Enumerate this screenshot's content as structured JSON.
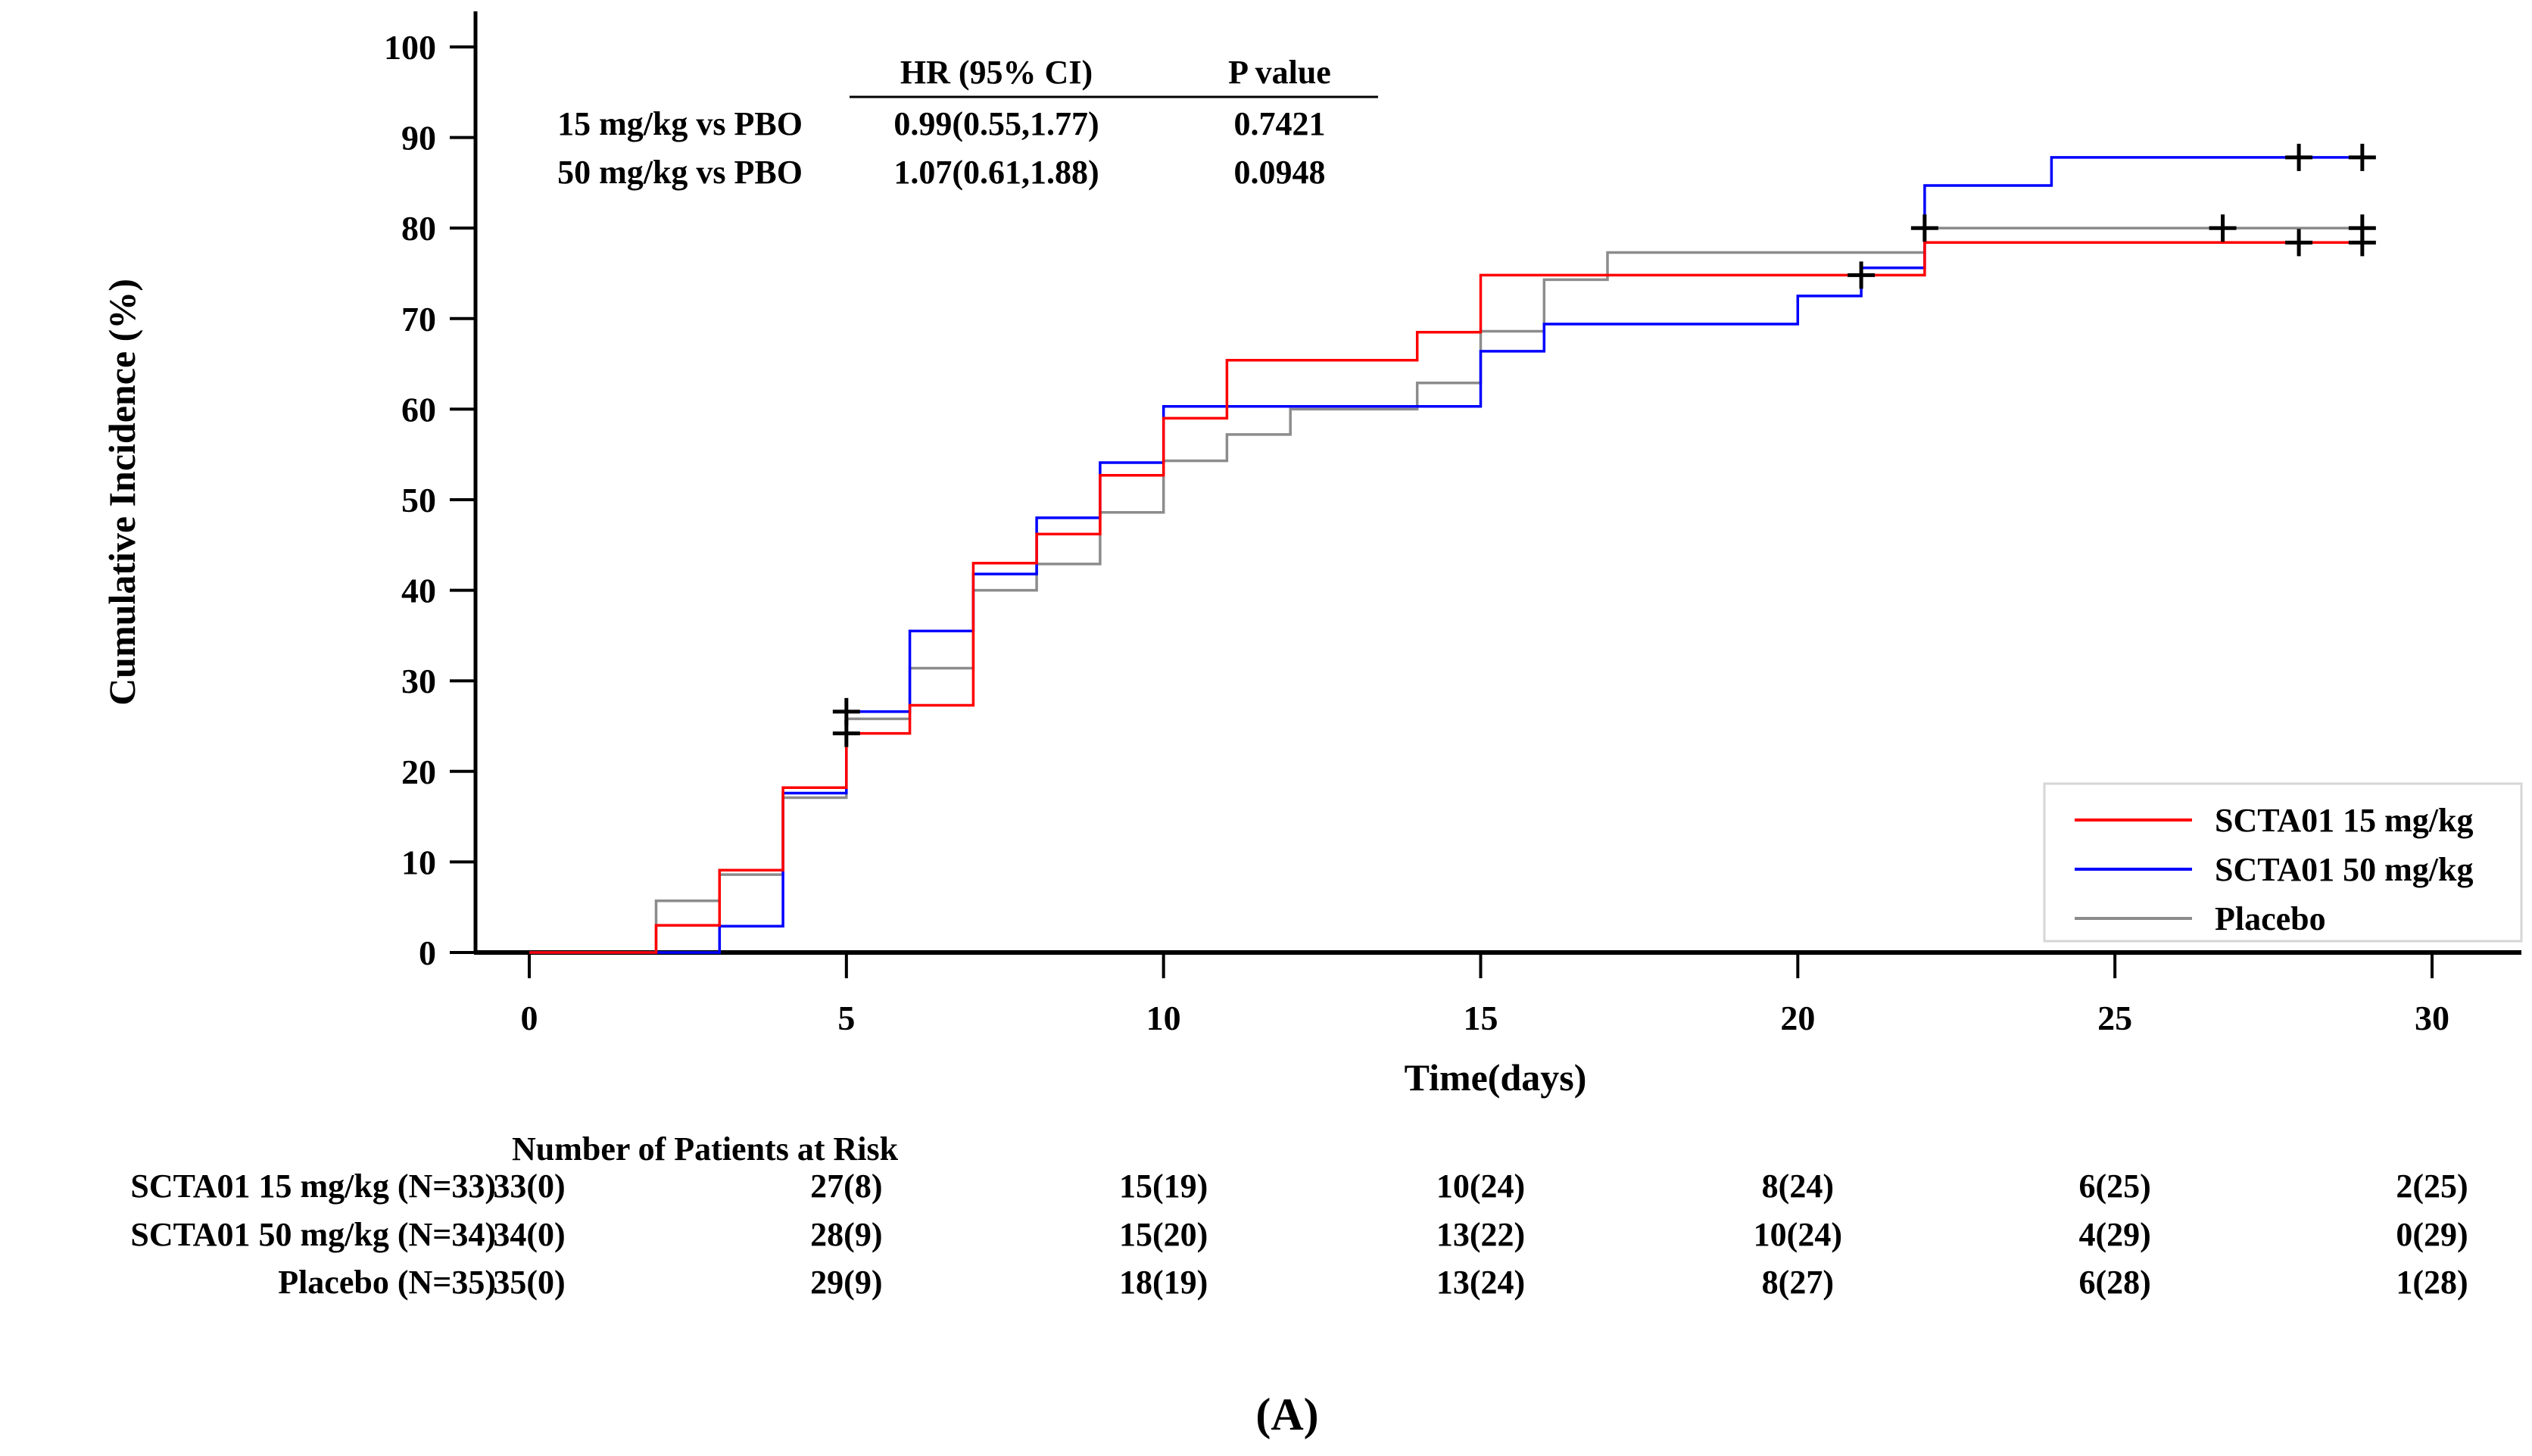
{
  "caption": "(A)",
  "axes": {
    "y_label": "Cumulative Incidence (%)",
    "x_label": "Time(days)"
  },
  "hr_table": {
    "col_hr": "HR (95% CI)",
    "col_p": "P value",
    "rows": [
      {
        "label": "15 mg/kg vs PBO",
        "hr": "0.99(0.55,1.77)",
        "p": "0.7421"
      },
      {
        "label": "50 mg/kg vs PBO",
        "hr": "1.07(0.61,1.88)",
        "p": "0.0948"
      }
    ]
  },
  "legend": {
    "items": [
      {
        "label": "SCTA01 15 mg/kg",
        "color": "#FF0000"
      },
      {
        "label": "SCTA01 50 mg/kg",
        "color": "#0000FF"
      },
      {
        "label": "Placebo",
        "color": "#8C8C8C"
      }
    ]
  },
  "risk_table": {
    "title": "Number of Patients at Risk",
    "columns_days": [
      0,
      5,
      10,
      15,
      20,
      25,
      30
    ],
    "rows": [
      {
        "label": "SCTA01 15 mg/kg (N=33)",
        "color": "#FF0000",
        "values": [
          "33(0)",
          "27(8)",
          "15(19)",
          "10(24)",
          "8(24)",
          "6(25)",
          "2(25)"
        ]
      },
      {
        "label": "SCTA01 50 mg/kg (N=34)",
        "color": "#0000FF",
        "values": [
          "34(0)",
          "28(9)",
          "15(20)",
          "13(22)",
          "10(24)",
          "4(29)",
          "0(29)"
        ]
      },
      {
        "label": "Placebo (N=35)",
        "color": "#A0A0A0",
        "values": [
          "35(0)",
          "29(9)",
          "18(19)",
          "13(24)",
          "8(27)",
          "6(28)",
          "1(28)"
        ]
      }
    ]
  },
  "chart_data": {
    "type": "line",
    "subtype": "step-cumulative-incidence",
    "title": "",
    "xlabel": "Time(days)",
    "ylabel": "Cumulative Incidence (%)",
    "xlim": [
      0,
      30
    ],
    "ylim": [
      0,
      100
    ],
    "x_ticks": [
      0,
      5,
      10,
      15,
      20,
      25,
      30
    ],
    "y_ticks": [
      0,
      10,
      20,
      30,
      40,
      50,
      60,
      70,
      80,
      90,
      100
    ],
    "grid": false,
    "legend_position": "lower right",
    "series": [
      {
        "name": "Placebo",
        "color": "#8C8C8C",
        "n": 35,
        "end_day": 29,
        "steps": [
          [
            2,
            5.7
          ],
          [
            3,
            8.6
          ],
          [
            4,
            17.1
          ],
          [
            5,
            25.8
          ],
          [
            6,
            31.4
          ],
          [
            7,
            40.0
          ],
          [
            8,
            42.9
          ],
          [
            9,
            48.6
          ],
          [
            10,
            54.3
          ],
          [
            11,
            57.2
          ],
          [
            12,
            60.0
          ],
          [
            14,
            62.9
          ],
          [
            15,
            68.6
          ],
          [
            16,
            74.3
          ],
          [
            17,
            77.3
          ],
          [
            22,
            80.0
          ]
        ],
        "censor_marks": [
          [
            22,
            80.0
          ],
          [
            26.7,
            80.0
          ],
          [
            28.9,
            80.0
          ]
        ]
      },
      {
        "name": "SCTA01 50 mg/kg",
        "color": "#0000FF",
        "n": 34,
        "end_day": 29,
        "steps": [
          [
            3,
            2.9
          ],
          [
            4,
            17.6
          ],
          [
            5,
            26.6
          ],
          [
            6,
            35.5
          ],
          [
            7,
            41.8
          ],
          [
            8,
            48.0
          ],
          [
            9,
            54.1
          ],
          [
            10,
            60.3
          ],
          [
            15,
            66.4
          ],
          [
            16,
            69.4
          ],
          [
            20,
            72.5
          ],
          [
            21,
            75.6
          ],
          [
            22,
            84.7
          ],
          [
            24,
            87.8
          ]
        ],
        "censor_marks": [
          [
            5,
            26.6
          ],
          [
            27.9,
            87.8
          ],
          [
            28.9,
            87.8
          ]
        ]
      },
      {
        "name": "SCTA01 15 mg/kg",
        "color": "#FF0000",
        "n": 33,
        "end_day": 29,
        "steps": [
          [
            2,
            3.0
          ],
          [
            3,
            9.1
          ],
          [
            4,
            18.2
          ],
          [
            5,
            24.2
          ],
          [
            6,
            27.3
          ],
          [
            7,
            43.0
          ],
          [
            8,
            46.2
          ],
          [
            9,
            52.7
          ],
          [
            10,
            59.0
          ],
          [
            11,
            65.4
          ],
          [
            14,
            68.5
          ],
          [
            15,
            74.8
          ],
          [
            22,
            78.4
          ]
        ],
        "censor_marks": [
          [
            5,
            24.2
          ],
          [
            21,
            74.8
          ],
          [
            27.9,
            78.4
          ],
          [
            28.9,
            78.4
          ]
        ]
      }
    ]
  }
}
